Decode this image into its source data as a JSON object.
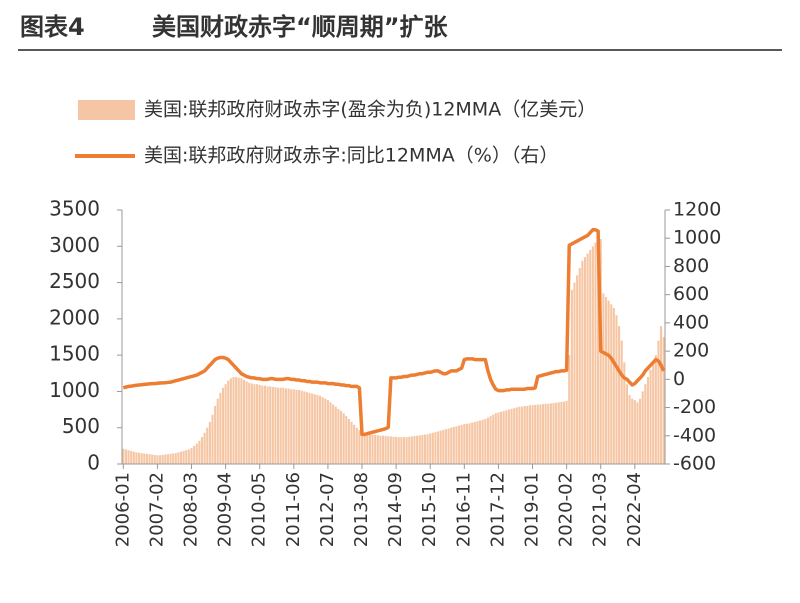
{
  "chart_data": {
    "type": "bar_line",
    "figure_label": "图表4",
    "title": "美国财政赤字“顺周期”扩张",
    "categories": [
      "2006-01",
      null,
      null,
      null,
      null,
      null,
      null,
      null,
      null,
      null,
      null,
      null,
      null,
      "2007-02",
      null,
      null,
      null,
      null,
      null,
      null,
      null,
      null,
      null,
      null,
      null,
      null,
      "2008-03",
      null,
      null,
      null,
      null,
      null,
      null,
      null,
      null,
      null,
      null,
      null,
      null,
      "2009-04",
      null,
      null,
      null,
      null,
      null,
      null,
      null,
      null,
      null,
      null,
      null,
      null,
      "2010-05",
      null,
      null,
      null,
      null,
      null,
      null,
      null,
      null,
      null,
      null,
      null,
      null,
      "2011-06",
      null,
      null,
      null,
      null,
      null,
      null,
      null,
      null,
      null,
      null,
      null,
      null,
      "2012-07",
      null,
      null,
      null,
      null,
      null,
      null,
      null,
      null,
      null,
      null,
      null,
      null,
      "2013-08",
      null,
      null,
      null,
      null,
      null,
      null,
      null,
      null,
      null,
      null,
      null,
      null,
      "2014-09",
      null,
      null,
      null,
      null,
      null,
      null,
      null,
      null,
      null,
      null,
      null,
      null,
      "2015-10",
      null,
      null,
      null,
      null,
      null,
      null,
      null,
      null,
      null,
      null,
      null,
      null,
      "2016-11",
      null,
      null,
      null,
      null,
      null,
      null,
      null,
      null,
      null,
      null,
      null,
      null,
      "2017-12",
      null,
      null,
      null,
      null,
      null,
      null,
      null,
      null,
      null,
      null,
      null,
      null,
      "2019-01",
      null,
      null,
      null,
      null,
      null,
      null,
      null,
      null,
      null,
      null,
      null,
      null,
      "2020-02",
      null,
      null,
      null,
      null,
      null,
      null,
      null,
      null,
      null,
      null,
      null,
      null,
      "2021-03",
      null,
      null,
      null,
      null,
      null,
      null,
      null,
      null,
      null,
      null,
      null,
      null,
      "2022-04",
      null,
      null,
      null,
      null,
      null,
      null,
      null,
      null,
      null,
      null,
      null
    ],
    "series": [
      {
        "name": "美国:联邦政府财政赤字(盈余为负)12MMA（亿美元）",
        "type": "bar",
        "color": "#f6c6a4",
        "values": [
          210,
          200,
          190,
          180,
          170,
          160,
          155,
          150,
          145,
          140,
          135,
          130,
          125,
          120,
          120,
          125,
          130,
          135,
          140,
          145,
          150,
          160,
          170,
          180,
          190,
          200,
          220,
          250,
          280,
          320,
          370,
          430,
          500,
          580,
          680,
          800,
          900,
          980,
          1050,
          1100,
          1150,
          1180,
          1200,
          1200,
          1190,
          1180,
          1160,
          1140,
          1120,
          1110,
          1100,
          1100,
          1090,
          1080,
          1080,
          1070,
          1070,
          1060,
          1060,
          1050,
          1050,
          1050,
          1040,
          1040,
          1030,
          1030,
          1020,
          1020,
          1010,
          1000,
          990,
          980,
          970,
          960,
          950,
          940,
          920,
          900,
          880,
          850,
          820,
          790,
          760,
          730,
          700,
          660,
          620,
          580,
          540,
          500,
          470,
          450,
          430,
          420,
          410,
          400,
          400,
          395,
          390,
          390,
          385,
          380,
          380,
          375,
          375,
          370,
          370,
          370,
          370,
          375,
          380,
          385,
          390,
          395,
          400,
          405,
          410,
          420,
          430,
          440,
          450,
          460,
          470,
          480,
          490,
          500,
          510,
          520,
          530,
          540,
          550,
          555,
          560,
          570,
          580,
          590,
          600,
          610,
          620,
          640,
          660,
          680,
          700,
          710,
          720,
          730,
          740,
          750,
          760,
          770,
          780,
          790,
          790,
          800,
          800,
          810,
          810,
          815,
          820,
          820,
          825,
          830,
          830,
          835,
          840,
          845,
          850,
          855,
          860,
          870,
          1500,
          2400,
          2500,
          2600,
          2700,
          2800,
          2850,
          2900,
          2950,
          3000,
          3050,
          3100,
          3100,
          2350,
          2300,
          2250,
          2200,
          2150,
          2050,
          1900,
          1700,
          1400,
          1100,
          950,
          900,
          880,
          850,
          900,
          1000,
          1100,
          1200,
          1300,
          1400,
          1500,
          1700,
          1900,
          1750
        ]
      },
      {
        "name": "美国:联邦政府财政赤字:同比12MMA（%）（右）",
        "type": "line",
        "axis": "y2",
        "color": "#ed7d31",
        "values": [
          -60,
          -55,
          -50,
          -48,
          -45,
          -42,
          -40,
          -38,
          -36,
          -34,
          -32,
          -30,
          -30,
          -28,
          -26,
          -25,
          -24,
          -22,
          -20,
          -15,
          -10,
          -5,
          0,
          5,
          10,
          15,
          20,
          25,
          30,
          40,
          50,
          60,
          80,
          100,
          120,
          140,
          150,
          155,
          155,
          150,
          140,
          120,
          100,
          80,
          60,
          40,
          30,
          20,
          15,
          10,
          10,
          5,
          5,
          0,
          0,
          0,
          5,
          5,
          0,
          0,
          0,
          0,
          5,
          5,
          0,
          0,
          -5,
          -5,
          -10,
          -10,
          -15,
          -15,
          -20,
          -20,
          -20,
          -25,
          -25,
          -25,
          -30,
          -30,
          -30,
          -35,
          -35,
          -40,
          -40,
          -45,
          -45,
          -50,
          -50,
          -50,
          -60,
          -390,
          -390,
          -385,
          -380,
          -375,
          -370,
          -365,
          -360,
          -355,
          -350,
          -340,
          10,
          10,
          10,
          15,
          15,
          20,
          20,
          25,
          30,
          30,
          35,
          40,
          40,
          45,
          50,
          50,
          55,
          60,
          60,
          50,
          40,
          40,
          50,
          60,
          60,
          60,
          70,
          80,
          140,
          145,
          145,
          145,
          140,
          140,
          140,
          140,
          140,
          60,
          0,
          -40,
          -70,
          -80,
          -80,
          -80,
          -75,
          -75,
          -70,
          -70,
          -70,
          -70,
          -70,
          -70,
          -65,
          -65,
          -65,
          -60,
          20,
          25,
          30,
          35,
          40,
          45,
          50,
          55,
          55,
          60,
          60,
          65,
          950,
          960,
          970,
          980,
          990,
          1000,
          1010,
          1020,
          1040,
          1060,
          1060,
          1050,
          200,
          190,
          180,
          170,
          150,
          120,
          90,
          60,
          30,
          10,
          0,
          -20,
          -40,
          -30,
          -10,
          10,
          30,
          60,
          80,
          100,
          120,
          140,
          130,
          100,
          60
        ]
      }
    ],
    "ylim": [
      0,
      3500
    ],
    "yticks": [
      0,
      500,
      1000,
      1500,
      2000,
      2500,
      3000,
      3500
    ],
    "y2lim": [
      -600,
      1200
    ],
    "y2ticks": [
      -600,
      -400,
      -200,
      0,
      200,
      400,
      600,
      800,
      1000,
      1200
    ],
    "grid": false
  }
}
